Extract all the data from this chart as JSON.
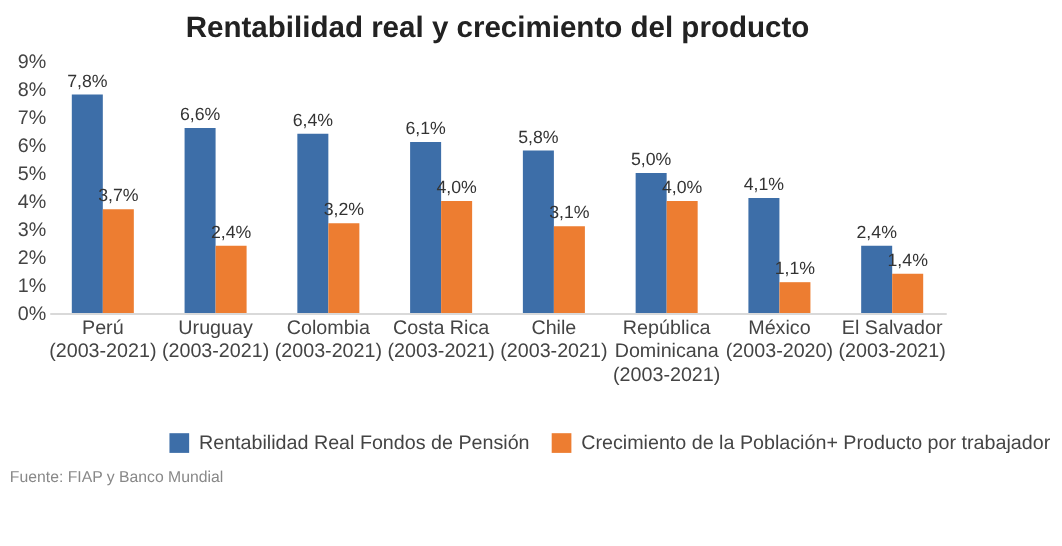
{
  "chart_data": {
    "type": "bar",
    "title": "Rentabilidad real y crecimiento del producto",
    "categories": [
      "Perú\n(2003-2021)",
      "Uruguay\n(2003-2021)",
      "Colombia\n(2003-2021)",
      "Costa Rica\n(2003-2021)",
      "Chile\n(2003-2021)",
      "República\nDominicana\n(2003-2021)",
      "México\n(2003-2020)",
      "El Salvador\n(2003-2021)"
    ],
    "series": [
      {
        "name": "Rentabilidad Real Fondos de Pensión",
        "color": "#3d6ea8",
        "values": [
          7.8,
          6.6,
          6.4,
          6.1,
          5.8,
          5.0,
          4.1,
          2.4
        ],
        "value_labels": [
          "7,8%",
          "6,6%",
          "6,4%",
          "6,1%",
          "5,8%",
          "5,0%",
          "4,1%",
          "2,4%"
        ]
      },
      {
        "name": "Crecimiento de la Población+ Producto por trabajador",
        "color": "#ed7d31",
        "values": [
          3.7,
          2.4,
          3.2,
          4.0,
          3.1,
          4.0,
          1.1,
          1.4
        ],
        "value_labels": [
          "3,7%",
          "2,4%",
          "3,2%",
          "4,0%",
          "3,1%",
          "4,0%",
          "1,1%",
          "1,4%"
        ]
      }
    ],
    "ylim": [
      0,
      9
    ],
    "yticks": [
      {
        "value": 0,
        "label": "0%"
      },
      {
        "value": 1,
        "label": "1%"
      },
      {
        "value": 2,
        "label": "2%"
      },
      {
        "value": 3,
        "label": "3%"
      },
      {
        "value": 4,
        "label": "4%"
      },
      {
        "value": 5,
        "label": "5%"
      },
      {
        "value": 6,
        "label": "6%"
      },
      {
        "value": 7,
        "label": "7%"
      },
      {
        "value": 8,
        "label": "8%"
      },
      {
        "value": 9,
        "label": "9%"
      }
    ],
    "legend": "bottom",
    "annotations": [
      "Fuente: FIAP y Banco Mundial"
    ]
  }
}
